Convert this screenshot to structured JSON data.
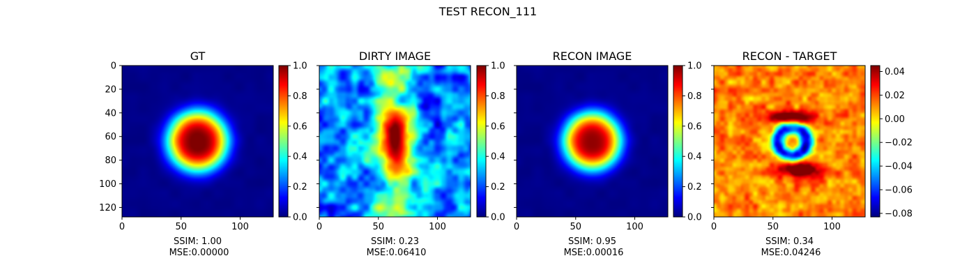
{
  "figure": {
    "suptitle": "TEST RECON_111"
  },
  "chart_data": [
    {
      "type": "heatmap",
      "title": "GT",
      "colormap": "jet",
      "xticks": [
        "0",
        "50",
        "100"
      ],
      "yticks": [
        "0",
        "20",
        "40",
        "60",
        "80",
        "100",
        "120"
      ],
      "colorbar": {
        "ticks": [
          "0.0",
          "0.2",
          "0.4",
          "0.6",
          "0.8",
          "1.0"
        ],
        "range": [
          0,
          1
        ]
      },
      "caption": [
        "SSIM: 1.00",
        "MSE:0.00000"
      ],
      "field": {
        "kind": "blob",
        "cx": 64,
        "cy": 64,
        "sigma_x": 22,
        "sigma_y": 22,
        "peak": 1.0
      }
    },
    {
      "type": "heatmap",
      "title": "DIRTY IMAGE",
      "colormap": "jet",
      "xticks": [
        "0",
        "50",
        "100"
      ],
      "yticks": [],
      "colorbar": {
        "ticks": [
          "0.0",
          "0.2",
          "0.4",
          "0.6",
          "0.8",
          "1.0"
        ],
        "range": [
          0,
          1
        ]
      },
      "caption": [
        "SSIM: 0.23",
        "MSE:0.06410"
      ],
      "field": {
        "kind": "dirty",
        "cx": 64,
        "cy": 64,
        "sigma_x": 9,
        "sigma_y": 14,
        "peak": 1.0
      }
    },
    {
      "type": "heatmap",
      "title": "RECON IMAGE",
      "colormap": "jet",
      "xticks": [
        "0",
        "50",
        "100"
      ],
      "yticks": [],
      "colorbar": {
        "ticks": [
          "0.0",
          "0.2",
          "0.4",
          "0.6",
          "0.8",
          "1.0"
        ],
        "range": [
          0,
          1
        ]
      },
      "caption": [
        "SSIM: 0.95",
        "MSE:0.00016"
      ],
      "field": {
        "kind": "blob",
        "cx": 64,
        "cy": 64,
        "sigma_x": 21,
        "sigma_y": 21,
        "peak": 0.97
      }
    },
    {
      "type": "heatmap",
      "title": "RECON - TARGET",
      "colormap": "jet",
      "xticks": [
        "0",
        "50",
        "100"
      ],
      "yticks": [],
      "colorbar": {
        "ticks": [
          "−0.08",
          "−0.06",
          "−0.04",
          "−0.02",
          "0.00",
          "0.02",
          "0.04"
        ],
        "range": [
          -0.083,
          0.045
        ]
      },
      "caption": [
        "SSIM: 0.34",
        "MSE:0.04246"
      ],
      "field": {
        "kind": "diff",
        "cx": 66,
        "cy": 64
      }
    }
  ]
}
